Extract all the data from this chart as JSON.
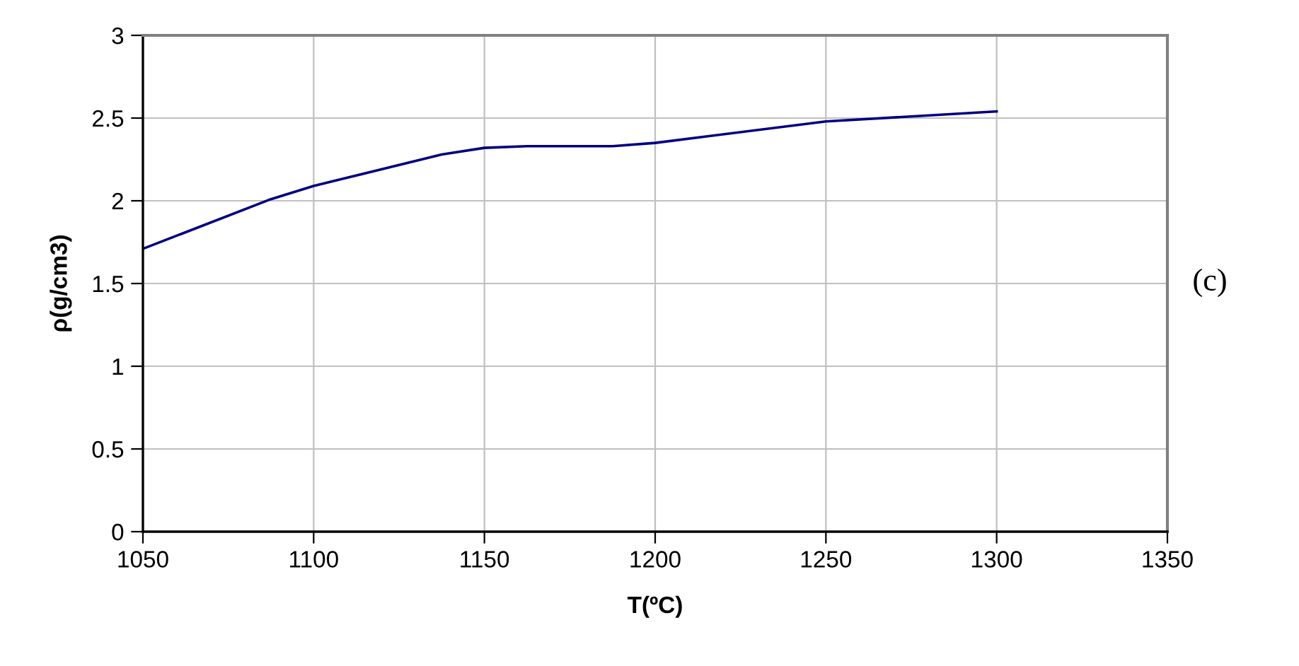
{
  "chart_data": {
    "type": "line",
    "xlabel": "T(ºC)",
    "ylabel": "ρ(g/cm3)",
    "annotations": [
      "(c)"
    ],
    "x": [
      1050,
      1087.5,
      1100,
      1137.5,
      1150,
      1162.5,
      1187.5,
      1200,
      1250,
      1300
    ],
    "series": [
      {
        "color": "#000080",
        "values": [
          1.71,
          2.01,
          2.09,
          2.28,
          2.32,
          2.33,
          2.33,
          2.35,
          2.48,
          2.54
        ]
      }
    ],
    "xlim": [
      1050,
      1350
    ],
    "xticks": [
      1050,
      1100,
      1150,
      1200,
      1250,
      1300,
      1350
    ],
    "ylim": [
      0,
      3
    ],
    "yticks": [
      0,
      0.5,
      1,
      1.5,
      2,
      2.5,
      3
    ],
    "grid": true,
    "marker": "none",
    "line_style": "solid"
  }
}
